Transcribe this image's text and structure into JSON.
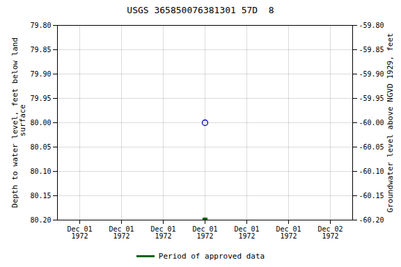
{
  "chart_data": {
    "type": "scatter",
    "title": "USGS 365850076381301 57D  8",
    "categories": [
      "Dec 01\n1972",
      "Dec 01\n1972",
      "Dec 01\n1972",
      "Dec 01\n1972",
      "Dec 01\n1972",
      "Dec 01\n1972",
      "Dec 02\n1972"
    ],
    "ylabel": "Depth to water level, feet below land\n surface",
    "y2label": "Groundwater level above NGVD 1929, feet",
    "ylim": [
      80.2,
      79.8
    ],
    "yticks": [
      {
        "value": 79.8,
        "label": "79.80"
      },
      {
        "value": 79.85,
        "label": "79.85"
      },
      {
        "value": 79.9,
        "label": "79.90"
      },
      {
        "value": 79.95,
        "label": "79.95"
      },
      {
        "value": 80.0,
        "label": "80.00"
      },
      {
        "value": 80.05,
        "label": "80.05"
      },
      {
        "value": 80.1,
        "label": "80.10"
      },
      {
        "value": 80.15,
        "label": "80.15"
      },
      {
        "value": 80.2,
        "label": "80.20"
      }
    ],
    "y2lim": [
      -60.2,
      -59.8
    ],
    "y2ticks": [
      {
        "value": -59.8,
        "label": "-59.80"
      },
      {
        "value": -59.85,
        "label": "-59.85"
      },
      {
        "value": -59.9,
        "label": "-59.90"
      },
      {
        "value": -59.95,
        "label": "-59.95"
      },
      {
        "value": -60.0,
        "label": "-60.00"
      },
      {
        "value": -60.05,
        "label": "-60.05"
      },
      {
        "value": -60.1,
        "label": "-60.10"
      },
      {
        "value": -60.15,
        "label": "-60.15"
      },
      {
        "value": -60.2,
        "label": "-60.20"
      }
    ],
    "grid": true,
    "legend": "bottom",
    "series": [
      {
        "color": "#0000bb",
        "marker": "open_circle",
        "values": [
          null,
          null,
          null,
          80.0,
          null,
          null,
          null
        ]
      },
      {
        "name": "Period of approved data",
        "color": "#006400",
        "marker": "square",
        "values": [
          null,
          null,
          null,
          80.2,
          null,
          null,
          null
        ]
      }
    ]
  }
}
